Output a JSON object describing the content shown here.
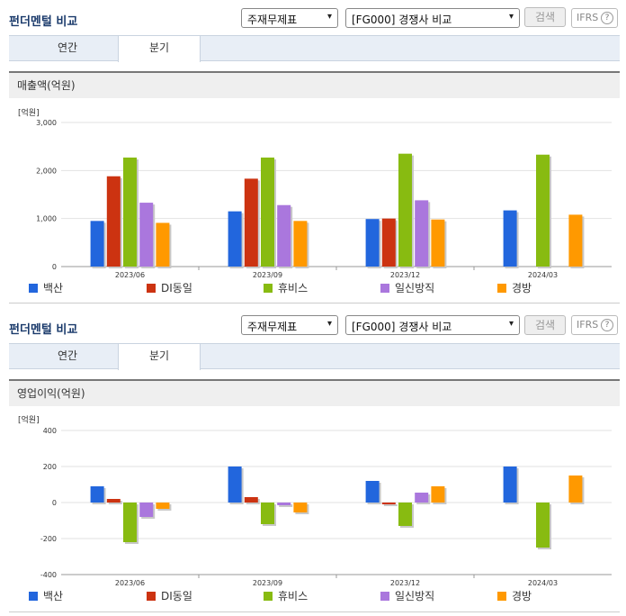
{
  "panel_title": "펀더멘털 비교",
  "select_item": "주재무제표",
  "select_compare": "[FG000] 경쟁사 비교",
  "search_label": "검색",
  "ifrs_label": "IFRS",
  "help_glyph": "?",
  "caret": "▾",
  "tabs": [
    "연간",
    "분기"
  ],
  "active_tab": "분기",
  "unit_label": "[억원]",
  "colors": {
    "백산": "#2266dd",
    "DI동일": "#cc3311",
    "휴비스": "#88bb11",
    "일신방직": "#aa77dd",
    "경방": "#ff9900"
  },
  "chart_data": [
    {
      "type": "bar",
      "title": "매출액(억원)",
      "categories": [
        "2023/06",
        "2023/09",
        "2023/12",
        "2024/03"
      ],
      "ylim": [
        0,
        3000
      ],
      "yticks": [
        0,
        1000,
        2000,
        3000
      ],
      "ytick_labels": [
        "0",
        "1,000",
        "2,000",
        "3,000"
      ],
      "grid": true,
      "legend_position": "bottom",
      "series": [
        {
          "name": "백산",
          "values": [
            950,
            1150,
            990,
            1170
          ]
        },
        {
          "name": "DI동일",
          "values": [
            1880,
            1830,
            1000,
            null
          ]
        },
        {
          "name": "휴비스",
          "values": [
            2270,
            2270,
            2350,
            2330
          ]
        },
        {
          "name": "일신방직",
          "values": [
            1330,
            1280,
            1380,
            null
          ]
        },
        {
          "name": "경방",
          "values": [
            910,
            950,
            980,
            1080
          ]
        }
      ]
    },
    {
      "type": "bar",
      "title": "영업이익(억원)",
      "categories": [
        "2023/06",
        "2023/09",
        "2023/12",
        "2024/03"
      ],
      "ylim": [
        -400,
        400
      ],
      "yticks": [
        -400,
        -200,
        0,
        200,
        400
      ],
      "ytick_labels": [
        "-400",
        "-200",
        "0",
        "200",
        "400"
      ],
      "grid": true,
      "legend_position": "bottom",
      "series": [
        {
          "name": "백산",
          "values": [
            90,
            200,
            120,
            200
          ]
        },
        {
          "name": "DI동일",
          "values": [
            20,
            30,
            -10,
            null
          ]
        },
        {
          "name": "휴비스",
          "values": [
            -220,
            -120,
            -130,
            -250
          ]
        },
        {
          "name": "일신방직",
          "values": [
            -80,
            -15,
            55,
            null
          ]
        },
        {
          "name": "경방",
          "values": [
            -35,
            -55,
            90,
            150
          ]
        }
      ]
    }
  ]
}
